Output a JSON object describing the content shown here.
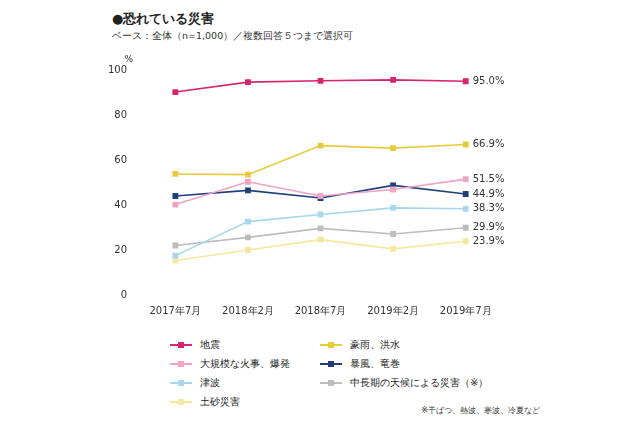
{
  "chart_data": {
    "type": "line",
    "title": "●恐れている災害",
    "subtitle": "ベース：全体（n=1,000）／複数回答５つまで選択可",
    "y_label": "%",
    "annotations": [
      "※干ばつ、熱波、寒波、冷夏など"
    ],
    "categories": [
      "2017年7月",
      "2018年2月",
      "2018年7月",
      "2019年2月",
      "2019年7月"
    ],
    "series": [
      {
        "name": "地震",
        "color": "#d6246e",
        "values": [
          90.2,
          94.6,
          95.2,
          95.6,
          95.0
        ],
        "value_labels": [
          null,
          null,
          null,
          null,
          "95.0%"
        ]
      },
      {
        "name": "豪雨、洪水",
        "color": "#e6cc3c",
        "values": [
          53.8,
          53.5,
          66.4,
          65.3,
          66.9
        ],
        "value_labels": [
          null,
          null,
          null,
          null,
          "66.9%"
        ]
      },
      {
        "name": "大規模な火事、爆発",
        "color": "#f0a3c4",
        "values": [
          40.2,
          50.3,
          44.0,
          46.9,
          51.5
        ],
        "value_labels": [
          null,
          null,
          null,
          null,
          "51.5%"
        ]
      },
      {
        "name": "暴風、竜巻",
        "color": "#1f3f7a",
        "values": [
          44.0,
          46.5,
          43.1,
          48.7,
          44.9
        ],
        "value_labels": [
          null,
          null,
          null,
          null,
          "44.9%"
        ]
      },
      {
        "name": "津波",
        "color": "#a6d7ec",
        "values": [
          17.5,
          32.6,
          35.8,
          38.7,
          38.3
        ],
        "value_labels": [
          null,
          null,
          null,
          null,
          "38.3%"
        ]
      },
      {
        "name": "中長期の天候による災害（※）",
        "color": "#bdbdbd",
        "values": [
          22.0,
          25.6,
          29.6,
          27.1,
          29.9
        ],
        "value_labels": [
          null,
          null,
          null,
          null,
          "29.9%"
        ]
      },
      {
        "name": "土砂災害",
        "color": "#f5e79e",
        "values": [
          15.3,
          20.0,
          24.6,
          20.5,
          23.9
        ],
        "value_labels": [
          null,
          null,
          null,
          null,
          "23.9%"
        ]
      }
    ],
    "ylim": [
      0,
      100
    ],
    "yticks": [
      0,
      20,
      40,
      60,
      80,
      100
    ],
    "grid": false,
    "legend": "bottom",
    "marker": "square",
    "data_labels": true
  }
}
